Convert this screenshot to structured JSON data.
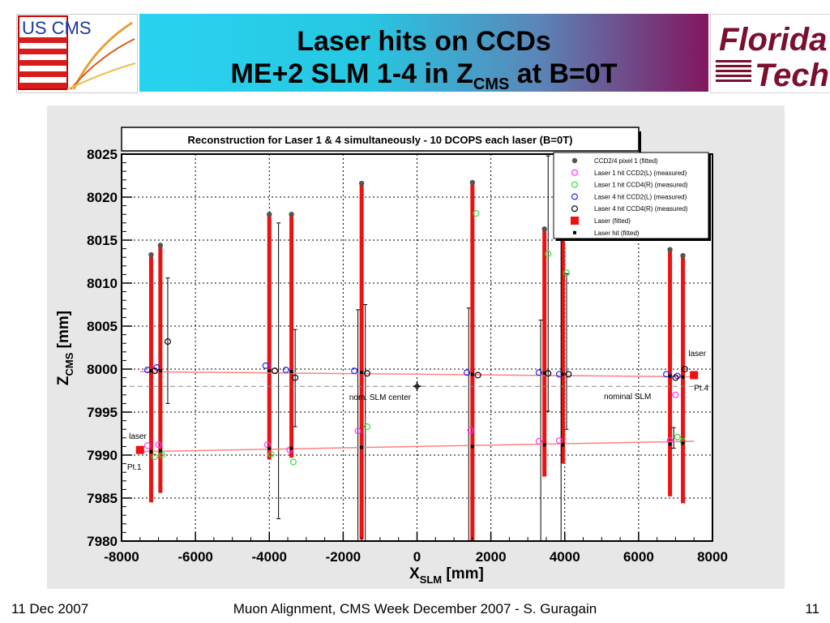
{
  "slide": {
    "title_line1": "Laser hits on CCDs",
    "title_line2_main": "ME+2 SLM 1-4 in Z",
    "title_line2_sub": "CMS",
    "title_line2_tail": " at B=0T",
    "logo_left_text": "US CMS",
    "logo_right_word1": "Florida",
    "logo_right_word2": "Tech"
  },
  "footer": {
    "date": "11 Dec 2007",
    "center": "Muon Alignment, CMS Week December 2007  - S. Guragain",
    "page": "11"
  },
  "colors": {
    "banner_start": "#28d3ef",
    "banner_end": "#83165e",
    "ccd_bar": "#ee1111",
    "laser_line": "#ff8080",
    "pixel_point": "#555555",
    "laser1_ccd2": "#ff33ff",
    "laser1_ccd4": "#33dd33",
    "laser4_ccd2": "#2222ff",
    "laser4_ccd4": "#000000"
  },
  "chart_data": {
    "type": "scatter",
    "title": "Reconstruction for Laser 1 & 4 simultaneously - 10 DCOPS each laser (B=0T)",
    "xlabel_main": "X",
    "xlabel_sub": "SLM",
    "xlabel_unit": " [mm]",
    "ylabel_main": "Z",
    "ylabel_sub": "CMS",
    "ylabel_unit": " [mm]",
    "xlim": [
      -8000,
      8000
    ],
    "ylim": [
      7980,
      8025
    ],
    "xticks": [
      -8000,
      -6000,
      -4000,
      -2000,
      0,
      2000,
      4000,
      6000,
      8000
    ],
    "yticks": [
      7980,
      7985,
      7990,
      7995,
      8000,
      8005,
      8010,
      8015,
      8020,
      8025
    ],
    "grid": true,
    "legend_position": "top-right",
    "legend": [
      {
        "label": "CCD2/4 pixel 1 (fitted)",
        "marker": "pixel"
      },
      {
        "label": "Laser 1 hit CCD2(L) (measured)",
        "marker": "l1c2"
      },
      {
        "label": "Laser 1 hit CCD4(R) (measured)",
        "marker": "l1c4"
      },
      {
        "label": "Laser 4 hit CCD2(L) (measured)",
        "marker": "l4c2"
      },
      {
        "label": "Laser 4 hit CCD4(R) (measured)",
        "marker": "l4c4"
      },
      {
        "label": "Laser (fitted)",
        "marker": "laserfit"
      },
      {
        "label": "Laser hit (fitted)",
        "marker": "hitfit"
      }
    ],
    "ccds": [
      {
        "x": -7200,
        "z_bottom": 7984.5,
        "z_top": 8013.3
      },
      {
        "x": -6950,
        "z_bottom": 7985.6,
        "z_top": 8014.4
      },
      {
        "x": -4000,
        "z_bottom": 7989.5,
        "z_top": 8018.0
      },
      {
        "x": -3400,
        "z_bottom": 7989.7,
        "z_top": 8018.0
      },
      {
        "x": -1500,
        "z_bottom": 7980.2,
        "z_top": 8021.6
      },
      {
        "x": 1500,
        "z_bottom": 7980.1,
        "z_top": 8021.7
      },
      {
        "x": 3450,
        "z_bottom": 7987.5,
        "z_top": 8016.3
      },
      {
        "x": 3950,
        "z_bottom": 7989.0,
        "z_top": 8018.0
      },
      {
        "x": 6850,
        "z_bottom": 7985.2,
        "z_top": 8013.9
      },
      {
        "x": 7200,
        "z_bottom": 7984.4,
        "z_top": 8013.2
      }
    ],
    "error_bars": [
      {
        "x": -6750,
        "low": 7996.0,
        "high": 8010.6
      },
      {
        "x": -3750,
        "low": 7982.6,
        "high": 8017.0
      },
      {
        "x": -3300,
        "low": 7993.3,
        "high": 8004.6
      },
      {
        "x": -1600,
        "low": 7980.0,
        "high": 8006.9
      },
      {
        "x": -1400,
        "low": 7980.0,
        "high": 8007.5
      },
      {
        "x": 1400,
        "low": 7980.0,
        "high": 8007.1
      },
      {
        "x": 3350,
        "low": 7980.0,
        "high": 8005.7
      },
      {
        "x": 3550,
        "low": 7995.1,
        "high": 8024.8
      },
      {
        "x": 3900,
        "low": 7980.0,
        "high": 8016.1
      },
      {
        "x": 4050,
        "low": 7993.0,
        "high": 8011.1
      },
      {
        "x": 6950,
        "low": 7990.8,
        "high": 7993.2
      }
    ],
    "series": [
      {
        "marker": "pixel",
        "points": [
          [
            -7200,
            8013.3
          ],
          [
            -6950,
            8014.4
          ],
          [
            -4000,
            8018.0
          ],
          [
            -3400,
            8018.0
          ],
          [
            -1500,
            8021.6
          ],
          [
            1500,
            8021.7
          ],
          [
            3450,
            8016.3
          ],
          [
            3950,
            8018.0
          ],
          [
            6850,
            8013.9
          ],
          [
            7200,
            8013.2
          ]
        ]
      },
      {
        "marker": "l1c2",
        "points": [
          [
            -7300,
            7991.1
          ],
          [
            -7000,
            7991.2
          ],
          [
            -4050,
            7991.2
          ],
          [
            -3450,
            7990.6
          ],
          [
            -1600,
            7992.8
          ],
          [
            1450,
            7992.9
          ],
          [
            3300,
            7991.6
          ],
          [
            3850,
            7991.7
          ],
          [
            6850,
            7991.7
          ],
          [
            7000,
            7997.0
          ]
        ]
      },
      {
        "marker": "l1c4",
        "points": [
          [
            -7100,
            7989.8
          ],
          [
            -6900,
            7990.0
          ],
          [
            -3950,
            7990.1
          ],
          [
            -3350,
            7989.2
          ],
          [
            -1350,
            7993.3
          ],
          [
            1600,
            8018.1
          ],
          [
            3550,
            8013.4
          ],
          [
            4050,
            8011.2
          ],
          [
            7050,
            7992.1
          ],
          [
            7200,
            7991.6
          ]
        ]
      },
      {
        "marker": "l4c2",
        "points": [
          [
            -7300,
            7999.9
          ],
          [
            -7050,
            8000.2
          ],
          [
            -4100,
            8000.4
          ],
          [
            -3550,
            7999.9
          ],
          [
            -1700,
            7999.8
          ],
          [
            1350,
            7999.6
          ],
          [
            3300,
            7999.6
          ],
          [
            3850,
            7999.4
          ],
          [
            6750,
            7999.4
          ],
          [
            7050,
            7999.2
          ]
        ]
      },
      {
        "marker": "l4c4",
        "points": [
          [
            -7100,
            7999.8
          ],
          [
            -6750,
            8003.2
          ],
          [
            -3850,
            7999.8
          ],
          [
            -3300,
            7999.0
          ],
          [
            -1350,
            7999.5
          ],
          [
            1650,
            7999.3
          ],
          [
            3550,
            7999.5
          ],
          [
            4100,
            7999.4
          ],
          [
            7000,
            7999.0
          ],
          [
            7250,
            8000.0
          ]
        ]
      },
      {
        "marker": "hitfit",
        "points": [
          [
            -7200,
            7990.4
          ],
          [
            -6950,
            7990.5
          ],
          [
            -4000,
            7990.8
          ],
          [
            -3400,
            7990.8
          ],
          [
            -1500,
            7990.9
          ],
          [
            1500,
            7991.0
          ],
          [
            3450,
            7991.2
          ],
          [
            3950,
            7991.2
          ],
          [
            6850,
            7991.3
          ],
          [
            7200,
            7991.4
          ],
          [
            -7200,
            7999.8
          ],
          [
            -6950,
            7999.8
          ],
          [
            -4000,
            7999.8
          ],
          [
            -3400,
            7999.7
          ],
          [
            -1500,
            7999.6
          ],
          [
            1500,
            7999.4
          ],
          [
            3450,
            7999.5
          ],
          [
            3950,
            7999.4
          ],
          [
            6850,
            7999.2
          ],
          [
            7200,
            7999.1
          ]
        ]
      },
      {
        "marker": "laserfit",
        "points": [
          [
            -7500,
            7990.6
          ],
          [
            7500,
            7999.3
          ]
        ]
      }
    ],
    "laser1_line": {
      "x1": -7500,
      "z1": 7990.4,
      "x2": 7500,
      "z2": 7991.6
    },
    "laser4_line": {
      "x1": -7500,
      "z1": 7999.7,
      "x2": 7500,
      "z2": 7999.1
    },
    "nominal_slm_z": 7998.0,
    "center_marker": {
      "x": 0,
      "z": 7998.0
    },
    "annotations": [
      {
        "text": "laser",
        "x": -7800,
        "z": 7991.9,
        "anchor": "start"
      },
      {
        "text": "Pt.1",
        "x": -7850,
        "z": 7988.3,
        "anchor": "start"
      },
      {
        "text": "nom. SLM center",
        "x": -1000,
        "z": 7996.4,
        "anchor": "middle"
      },
      {
        "text": "nominal SLM",
        "x": 5700,
        "z": 7996.5,
        "anchor": "middle"
      },
      {
        "text": "laser",
        "x": 7350,
        "z": 8001.5,
        "anchor": "start"
      },
      {
        "text": "Pt.4",
        "x": 7500,
        "z": 7997.5,
        "anchor": "start"
      }
    ]
  }
}
